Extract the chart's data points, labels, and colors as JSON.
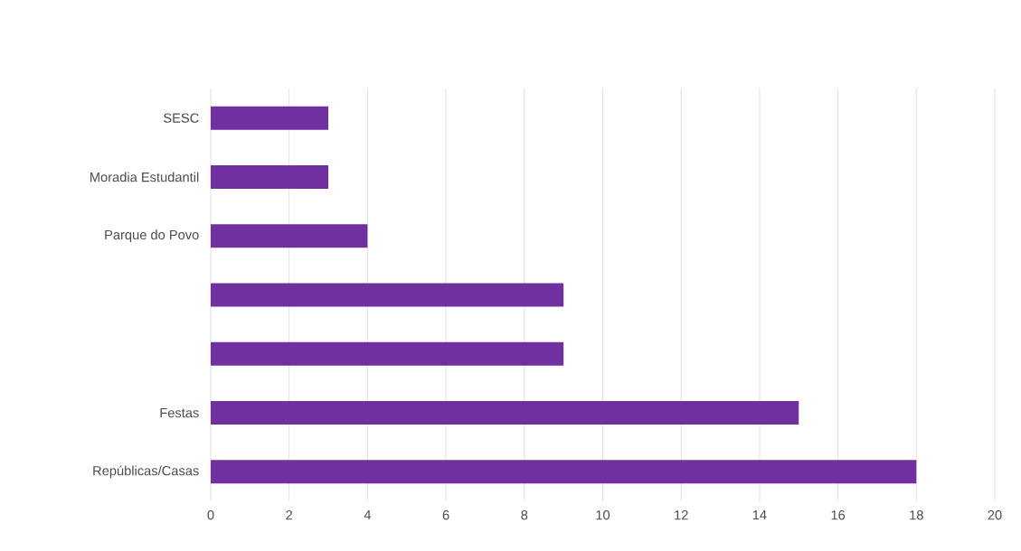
{
  "chart_data": {
    "type": "bar",
    "orientation": "horizontal",
    "categories": [
      "SESC",
      "Moradia Estudantil",
      "Parque do Povo",
      null,
      null,
      "Festas",
      "Repúblicas/Casas"
    ],
    "values": [
      3,
      3,
      4,
      9,
      9,
      15,
      18
    ],
    "color": "#7030a0",
    "xlim": [
      0,
      20
    ],
    "xticks": [
      0,
      2,
      4,
      6,
      8,
      10,
      12,
      14,
      16,
      18,
      20
    ],
    "grid": "x"
  }
}
